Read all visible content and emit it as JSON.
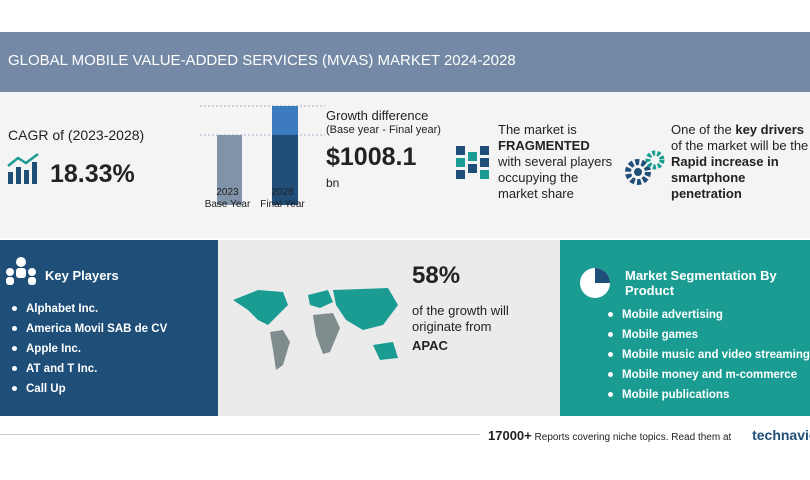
{
  "header": {
    "title": "GLOBAL MOBILE VALUE-ADDED SERVICES (MVAS) MARKET 2024-2028"
  },
  "cagr": {
    "label": "CAGR of (2023-2028)",
    "value": "18.33%"
  },
  "growth": {
    "bars": [
      {
        "year": "2023",
        "caption": "Base Year"
      },
      {
        "year": "2028",
        "caption": "Final Year"
      }
    ],
    "label": "Growth difference",
    "sublabel": "(Base year - Final year)",
    "value": "$1008.1",
    "unit": "bn"
  },
  "market": {
    "prefix": "The market is",
    "highlight": "FRAGMENTED",
    "suffix": "with several players occupying the market share"
  },
  "drivers": {
    "prefix": "One of the",
    "highlight": "key drivers",
    "middle": "of the market will be the",
    "driver": "Rapid increase in smartphone penetration"
  },
  "key_players": {
    "title": "Key Players",
    "items": [
      "Alphabet Inc.",
      "America Movil SAB de CV",
      "Apple Inc.",
      "AT and T Inc.",
      "Call Up"
    ]
  },
  "region": {
    "share": "58%",
    "text": "of the growth will originate from",
    "region": "APAC"
  },
  "segmentation": {
    "title": "Market Segmentation By Product",
    "items": [
      "Mobile advertising",
      "Mobile games",
      "Mobile music and video streaming",
      "Mobile money and m-commerce",
      "Mobile publications"
    ]
  },
  "footer": {
    "count": "17000+",
    "text": "Reports covering niche topics. Read them at",
    "brand": "technavio"
  }
}
